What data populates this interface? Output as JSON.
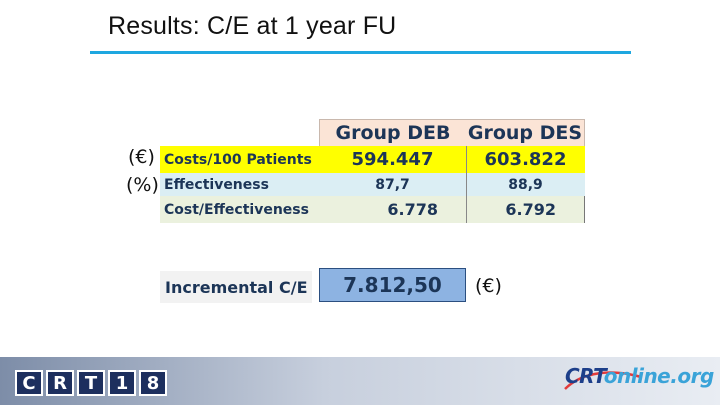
{
  "slide": {
    "title": "Results: C/E at 1 year FU"
  },
  "units": {
    "costs_unit": "(€)",
    "effectiveness_unit": "(%)",
    "incremental_unit": "(€)"
  },
  "table": {
    "headers": [
      "Group DEB",
      "Group DES"
    ],
    "rows": [
      {
        "label": "Costs/100 Patients",
        "values": [
          "594.447",
          "603.822"
        ]
      },
      {
        "label": "Effectiveness",
        "values": [
          "87,7",
          "88,9"
        ]
      },
      {
        "label": "Cost/Effectiveness",
        "values": [
          "6.778",
          "6.792"
        ]
      }
    ]
  },
  "incremental": {
    "label": "Incremental C/E",
    "value": "7.812,50"
  },
  "footer": {
    "logo_left_letters": [
      "C",
      "R",
      "T",
      "1",
      "8"
    ],
    "logo_right_part1": "CRT",
    "logo_right_part2": "online.org"
  },
  "colors": {
    "accent_rule": "#1ea7e0",
    "header_fill": "#fbe4d6",
    "row1_fill": "#ffff00",
    "row2_fill": "#dbeef4",
    "row3_fill": "#ebf1de",
    "incremental_fill": "#8db3e2"
  }
}
